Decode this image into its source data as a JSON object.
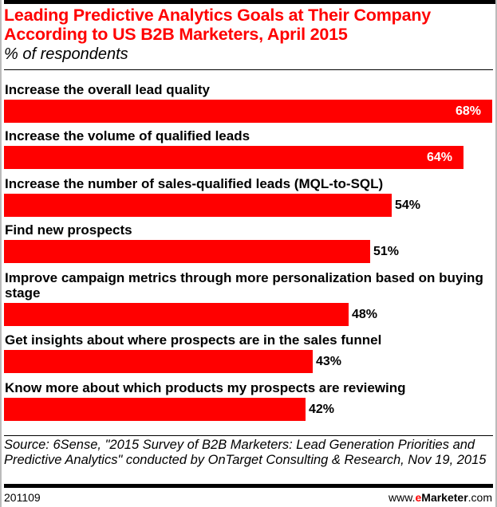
{
  "chart_data": {
    "type": "bar",
    "orientation": "horizontal",
    "title": "Leading Predictive Analytics Goals at Their Company According to US B2B Marketers, April 2015",
    "subtitle": "% of respondents",
    "categories": [
      "Increase the overall lead quality",
      "Increase the volume of qualified leads",
      "Increase the number of sales-qualified leads (MQL-to-SQL)",
      "Find new prospects",
      "Improve campaign metrics through more personalization based on buying stage",
      "Get insights about where prospects are in the sales funnel",
      "Know more about which products my prospects are reviewing"
    ],
    "values": [
      68,
      64,
      54,
      51,
      48,
      43,
      42
    ],
    "data_labels": [
      "68%",
      "64%",
      "54%",
      "51%",
      "48%",
      "43%",
      "42%"
    ],
    "bar_color": "#ff0000",
    "title_color": "#ff0000",
    "grid": false
  },
  "footer": {
    "source": "Source: 6Sense, \"2015 Survey of B2B Marketers: Lead Generation Priorities and Predictive Analytics\" conducted by OnTarget Consulting & Research, Nov 19, 2015",
    "code": "201109",
    "brand_prefix": "www.",
    "brand_e": "e",
    "brand_name": "Marketer",
    "brand_suffix": ".com"
  }
}
